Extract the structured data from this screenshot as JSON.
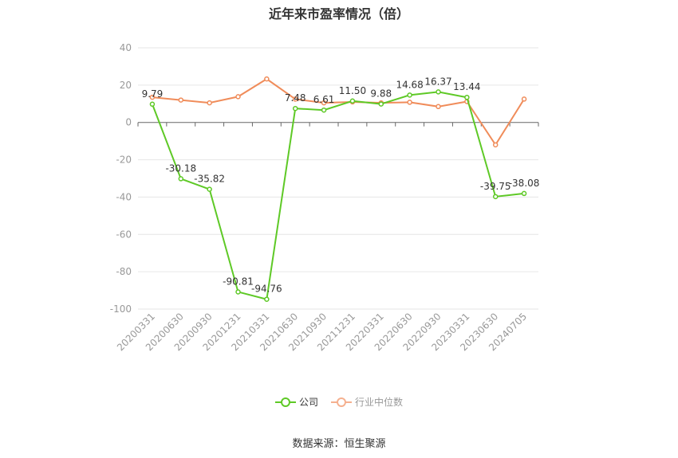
{
  "chart_data": {
    "type": "line",
    "title": "近年来市盈率情况（倍）",
    "categories": [
      "20200331",
      "20200630",
      "20200930",
      "20201231",
      "20210331",
      "20210630",
      "20210930",
      "20211231",
      "20220331",
      "20220630",
      "20220930",
      "20230331",
      "20230630",
      "20240705"
    ],
    "series": [
      {
        "name": "公司",
        "color": "#5ec926",
        "values": [
          9.79,
          -30.18,
          -35.82,
          -90.81,
          -94.76,
          7.48,
          6.61,
          11.5,
          9.88,
          14.68,
          16.37,
          13.44,
          -39.75,
          -38.08
        ],
        "labels": [
          "9.79",
          "-30.18",
          "-35.82",
          "-90.81",
          "-94.76",
          "7.48",
          "6.61",
          "11.50",
          "9.88",
          "14.68",
          "16.37",
          "13.44",
          "-39.75",
          "-38.08"
        ]
      },
      {
        "name": "行业中位数",
        "color": "#f08c5a",
        "values": [
          13.5,
          12,
          10.5,
          13.8,
          23.3,
          12.5,
          10.5,
          11,
          10.5,
          10.8,
          8.5,
          11.2,
          -12,
          12.5
        ]
      }
    ],
    "yticks": [
      40,
      20,
      0,
      -20,
      -40,
      -60,
      -80,
      -100
    ],
    "ylim": [
      -100,
      40
    ],
    "grid": true,
    "legend_position": "bottom"
  },
  "source": "数据来源：恒生聚源"
}
